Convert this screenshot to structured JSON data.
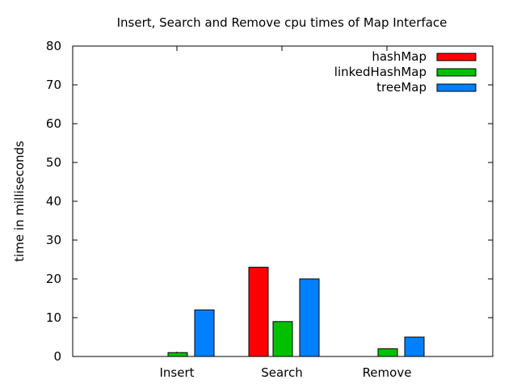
{
  "chart_data": {
    "type": "bar",
    "title": "Insert, Search and Remove cpu times of Map Interface",
    "xlabel": "",
    "ylabel": "time in milliseconds",
    "categories": [
      "Insert",
      "Search",
      "Remove"
    ],
    "yticks": [
      "0",
      "10",
      "20",
      "30",
      "40",
      "50",
      "60",
      "70",
      "80"
    ],
    "ylim": [
      0,
      80
    ],
    "grid": false,
    "legend_position": "top-right",
    "series": [
      {
        "name": "hashMap",
        "color": "#ff0000",
        "values": [
          0,
          23,
          0
        ]
      },
      {
        "name": "linkedHashMap",
        "color": "#00c000",
        "values": [
          1,
          9,
          2
        ]
      },
      {
        "name": "treeMap",
        "color": "#0080ff",
        "values": [
          12,
          20,
          5
        ]
      }
    ]
  }
}
